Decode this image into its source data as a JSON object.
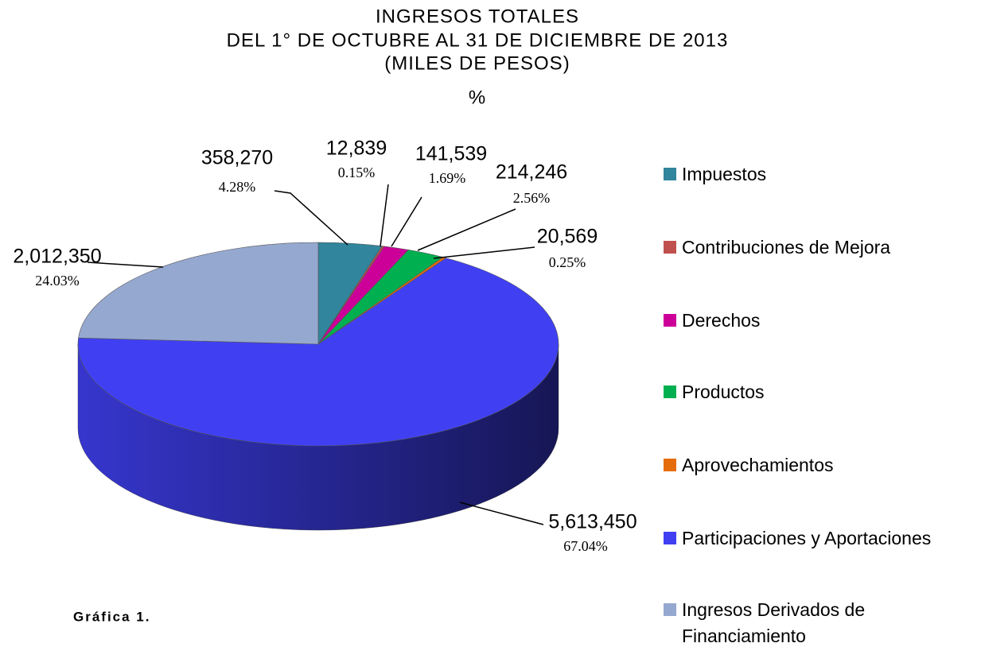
{
  "chart_data": {
    "type": "pie3d",
    "title": [
      "INGRESOS TOTALES",
      "DEL 1° DE OCTUBRE AL 31 DE DICIEMBRE DE 2013",
      "(MILES DE PESOS)",
      "%"
    ],
    "caption": "Gráfica 1.",
    "categories": [
      "Impuestos",
      "Contribuciones de Mejora",
      "Derechos",
      "Productos",
      "Aprovechamientos",
      "Participaciones y Aportaciones",
      "Ingresos Derivados de Financiamiento"
    ],
    "values": [
      358270,
      12839,
      141539,
      214246,
      20569,
      5613450,
      2012350
    ],
    "value_labels": [
      "358,270",
      "12,839",
      "141,539",
      "214,246",
      "20,569",
      "5,613,450",
      "2,012,350"
    ],
    "percent_labels": [
      "4.28%",
      "0.15%",
      "1.69%",
      "2.56%",
      "0.25%",
      "67.04%",
      "24.03%"
    ],
    "colors": [
      "#31859c",
      "#c0504d",
      "#cc0099",
      "#00b050",
      "#e46c0a",
      "#4040f2",
      "#95a8d0"
    ],
    "legend": "right"
  }
}
